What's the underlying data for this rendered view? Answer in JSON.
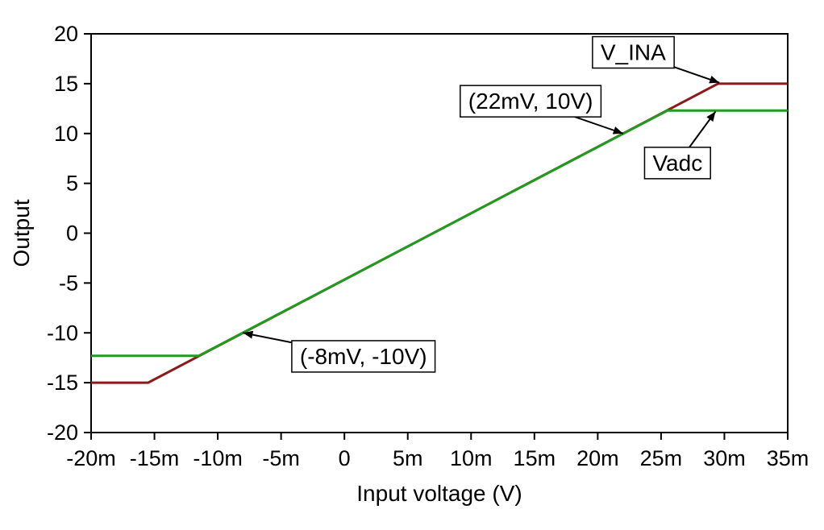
{
  "chart_data": {
    "type": "line",
    "title": "",
    "xlabel": "Input voltage (V)",
    "ylabel": "Output",
    "xlim": [
      -0.02,
      0.035
    ],
    "ylim": [
      -20,
      20
    ],
    "grid": false,
    "legend_position": "none",
    "background": "#ffffff",
    "axis_color": "#000000",
    "text_color": "#000000",
    "x_ticks": [
      {
        "v": -0.02,
        "label": "-20m"
      },
      {
        "v": -0.015,
        "label": "-15m"
      },
      {
        "v": -0.01,
        "label": "-10m"
      },
      {
        "v": -0.005,
        "label": "-5m"
      },
      {
        "v": 0.0,
        "label": "0"
      },
      {
        "v": 0.005,
        "label": "5m"
      },
      {
        "v": 0.01,
        "label": "10m"
      },
      {
        "v": 0.015,
        "label": "15m"
      },
      {
        "v": 0.02,
        "label": "20m"
      },
      {
        "v": 0.025,
        "label": "25m"
      },
      {
        "v": 0.03,
        "label": "30m"
      },
      {
        "v": 0.035,
        "label": "35m"
      }
    ],
    "y_ticks": [
      {
        "v": 20,
        "label": "20"
      },
      {
        "v": 15,
        "label": "15"
      },
      {
        "v": 10,
        "label": "10"
      },
      {
        "v": 5,
        "label": "5"
      },
      {
        "v": 0,
        "label": "0"
      },
      {
        "v": -5,
        "label": "-5"
      },
      {
        "v": -10,
        "label": "-10"
      },
      {
        "v": -15,
        "label": "-15"
      },
      {
        "v": -20,
        "label": "-20"
      }
    ],
    "series": [
      {
        "name": "V_INA",
        "color": "#8B1A1A",
        "width": 3,
        "points": [
          [
            -0.02,
            -15
          ],
          [
            -0.0155,
            -15
          ],
          [
            0.0295,
            15
          ],
          [
            0.035,
            15
          ]
        ]
      },
      {
        "name": "Vadc",
        "color": "#1F9B1F",
        "width": 3,
        "points": [
          [
            -0.02,
            -12.3
          ],
          [
            -0.0115,
            -12.3
          ],
          [
            0.0255,
            12.3
          ],
          [
            0.035,
            12.3
          ]
        ]
      }
    ],
    "annotations": [
      {
        "text": "V_INA",
        "label_x": 0.0228,
        "label_y": 18.1,
        "target_x": 0.0296,
        "target_y": 15.1
      },
      {
        "text": "(22mV, 10V)",
        "label_x": 0.0147,
        "label_y": 13.2,
        "target_x": 0.022,
        "target_y": 10.0
      },
      {
        "text": "Vadc",
        "label_x": 0.0263,
        "label_y": 7.0,
        "target_x": 0.0293,
        "target_y": 12.2
      },
      {
        "text": "(-8mV, -10V)",
        "label_x": 0.0015,
        "label_y": -12.4,
        "target_x": -0.008,
        "target_y": -10.0
      }
    ]
  }
}
